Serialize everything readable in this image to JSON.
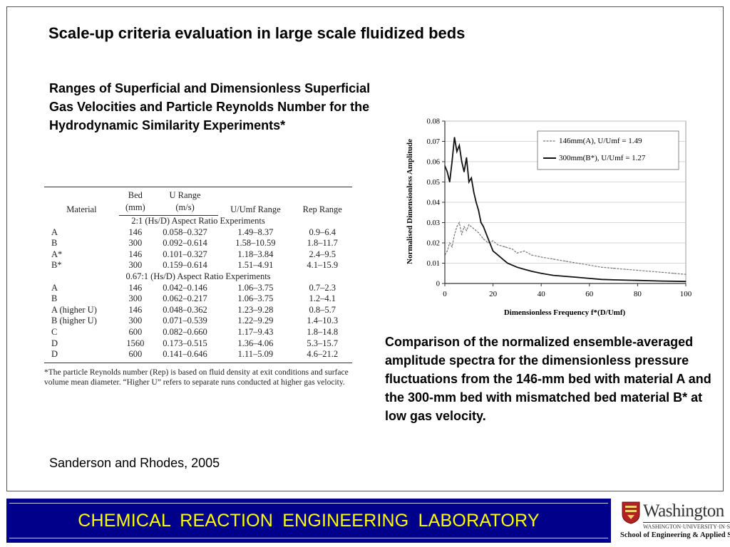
{
  "title": "Scale-up criteria evaluation in large scale fluidized beds",
  "subtitle": "Ranges of Superficial and Dimensionless Superficial Gas Velocities and Particle Reynolds Number for the Hydrodynamic Similarity Experiments*",
  "table": {
    "headers": {
      "material": "Material",
      "bed": "Bed",
      "bed_unit": "(mm)",
      "u_range": "U Range",
      "u_unit": "(m/s)",
      "uumf_range": "U/Umf Range",
      "rep_range": "Rep Range"
    },
    "sections": [
      {
        "title": "2:1 (Hs/D) Aspect Ratio Experiments",
        "rows": [
          [
            "A",
            "146",
            "0.058–0.327",
            "1.49–8.37",
            "0.9–6.4"
          ],
          [
            "B",
            "300",
            "0.092–0.614",
            "1.58–10.59",
            "1.8–11.7"
          ],
          [
            "A*",
            "146",
            "0.101–0.327",
            "1.18–3.84",
            "2.4–9.5"
          ],
          [
            "B*",
            "300",
            "0.159–0.614",
            "1.51–4.91",
            "4.1–15.9"
          ]
        ]
      },
      {
        "title": "0.67:1 (Hs/D) Aspect Ratio Experiments",
        "rows": [
          [
            "A",
            "146",
            "0.042–0.146",
            "1.06–3.75",
            "0.7–2.3"
          ],
          [
            "B",
            "300",
            "0.062–0.217",
            "1.06–3.75",
            "1.2–4.1"
          ],
          [
            "A (higher U)",
            "146",
            "0.048–0.362",
            "1.23–9.28",
            "0.8–5.7"
          ],
          [
            "B (higher U)",
            "300",
            "0.071–0.539",
            "1.22–9.29",
            "1.4–10.3"
          ],
          [
            "C",
            "600",
            "0.082–0.660",
            "1.17–9.43",
            "1.8–14.8"
          ],
          [
            "D",
            "1560",
            "0.173–0.515",
            "1.36–4.06",
            "5.3–15.7"
          ],
          [
            "D",
            "600",
            "0.141–0.646",
            "1.11–5.09",
            "4.6–21.2"
          ]
        ]
      }
    ],
    "footnote": "*The particle Reynolds number (Rep) is based on fluid density at exit conditions and surface volume mean diameter. “Higher U” refers to separate runs conducted at higher gas velocity."
  },
  "citation": "Sanderson and Rhodes, 2005",
  "caption": "Comparison of the normalized ensemble-averaged amplitude spectra for the dimensionless pressure fluctuations from the 146-mm bed with material A and the 300-mm bed with mismatched bed material B* at low gas velocity.",
  "footer": {
    "lab_name": "CHEMICAL  REACTION  ENGINEERING  LABORATORY",
    "bar_color": "#00008b",
    "text_color": "#ffff00",
    "university": "Washington",
    "university_line": "WASHINGTON·UNIVERSITY·IN·ST·LOUIS",
    "school": "School of Engineering & Applied Science"
  },
  "chart_data": {
    "type": "line",
    "xlabel": "Dimensionless Frequency f*(D/Umf)",
    "ylabel": "Normalised Dimensionless Amplitude",
    "xlim": [
      0,
      100
    ],
    "ylim": [
      0,
      0.08
    ],
    "xticks": [
      "0",
      "20",
      "40",
      "60",
      "80",
      "100"
    ],
    "yticks": [
      "0",
      "0.01",
      "0.02",
      "0.03",
      "0.04",
      "0.05",
      "0.06",
      "0.07",
      "0.08"
    ],
    "legend_position": "top-right",
    "grid": true,
    "series": [
      {
        "name": "146mm(A), U/Umf = 1.49",
        "color": "#777777",
        "x": [
          0,
          1,
          2,
          3,
          4,
          5,
          6,
          7,
          8,
          9,
          10,
          12,
          14,
          16,
          18,
          20,
          22,
          25,
          28,
          30,
          33,
          36,
          40,
          45,
          50,
          55,
          60,
          65,
          70,
          75,
          80,
          85,
          90,
          95,
          100
        ],
        "y": [
          0.014,
          0.016,
          0.02,
          0.018,
          0.024,
          0.028,
          0.03,
          0.024,
          0.028,
          0.026,
          0.029,
          0.027,
          0.025,
          0.022,
          0.02,
          0.021,
          0.019,
          0.018,
          0.017,
          0.015,
          0.016,
          0.014,
          0.013,
          0.012,
          0.011,
          0.01,
          0.009,
          0.008,
          0.0075,
          0.007,
          0.0065,
          0.006,
          0.0055,
          0.005,
          0.0045
        ]
      },
      {
        "name": "300mm(B*), U/Umf = 1.27",
        "color": "#111111",
        "x": [
          0,
          1,
          2,
          3,
          4,
          5,
          6,
          7,
          8,
          9,
          10,
          11,
          12,
          13,
          14,
          15,
          16,
          18,
          20,
          22,
          24,
          26,
          28,
          30,
          33,
          36,
          40,
          45,
          50,
          55,
          60,
          65,
          70,
          80,
          90,
          100
        ],
        "y": [
          0.058,
          0.055,
          0.05,
          0.06,
          0.072,
          0.065,
          0.068,
          0.06,
          0.055,
          0.062,
          0.05,
          0.052,
          0.045,
          0.04,
          0.036,
          0.03,
          0.028,
          0.022,
          0.016,
          0.014,
          0.012,
          0.01,
          0.009,
          0.008,
          0.007,
          0.006,
          0.005,
          0.004,
          0.0035,
          0.003,
          0.0025,
          0.002,
          0.0018,
          0.0015,
          0.0012,
          0.001
        ]
      }
    ]
  }
}
